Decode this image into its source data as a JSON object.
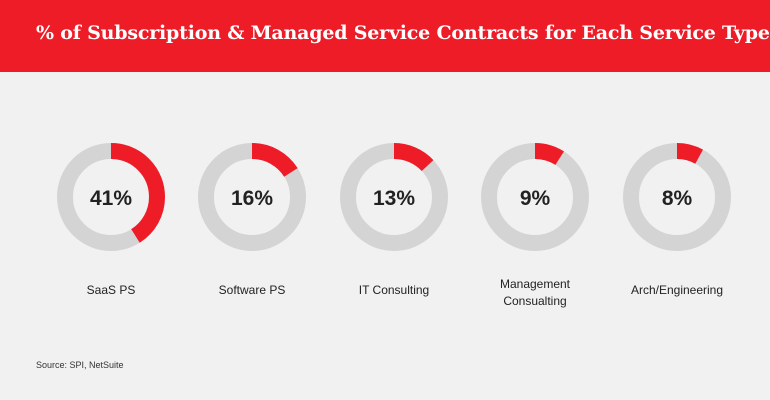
{
  "header": {
    "title": "% of Subscription & Managed Service Contracts for Each Service Type"
  },
  "colors": {
    "accent": "#ee1c27",
    "ring": "#d4d4d4",
    "background": "#f1f1f1"
  },
  "chart_data": {
    "type": "donut",
    "unit": "%",
    "categories": [
      "SaaS PS",
      "Software PS",
      "IT Consulting",
      "Management Consualting",
      "Arch/Engineering"
    ],
    "values": [
      41,
      16,
      13,
      9,
      8
    ],
    "value_labels": [
      "41%",
      "16%",
      "13%",
      "9%",
      "8%"
    ]
  },
  "footer": {
    "source": "Source: SPI, NetSuite"
  }
}
